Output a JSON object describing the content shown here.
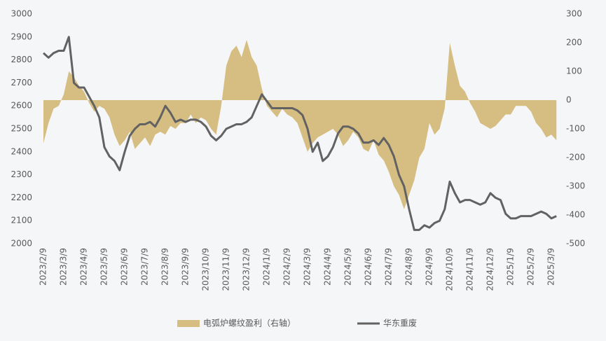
{
  "chart_data": {
    "type": "line",
    "categories": [
      "2023/2/9",
      null,
      null,
      null,
      "2023/3/9",
      null,
      null,
      null,
      "2023/4/9",
      null,
      null,
      null,
      "2023/5/9",
      null,
      null,
      null,
      "2023/6/9",
      null,
      null,
      null,
      "2023/7/9",
      null,
      null,
      null,
      "2023/8/9",
      null,
      null,
      null,
      "2023/9/9",
      null,
      null,
      null,
      "2023/10/9",
      null,
      null,
      null,
      "2023/11/9",
      null,
      null,
      null,
      "2023/12/9",
      null,
      null,
      null,
      "2024/1/9",
      null,
      null,
      null,
      "2024/2/9",
      null,
      null,
      null,
      "2024/3/9",
      null,
      null,
      null,
      "2024/4/9",
      null,
      null,
      null,
      "2024/5/9",
      null,
      null,
      null,
      "2024/6/9",
      null,
      null,
      null,
      "2024/7/9",
      null,
      null,
      null,
      "2024/8/9",
      null,
      null,
      null,
      "2024/9/9",
      null,
      null,
      null,
      "2024/10/9",
      null,
      null,
      null,
      "2024/11/9",
      null,
      null,
      null,
      "2024/12/9",
      null,
      null,
      null,
      "2025/1/9",
      null,
      null,
      null,
      "2025/2/9",
      null,
      null,
      null,
      "2025/3/9",
      null
    ],
    "series": [
      {
        "name": "电弧炉螺纹盈利（右轴）",
        "type": "area",
        "axis": "y2",
        "color": "#d6bd82",
        "values": [
          -150,
          -80,
          -30,
          -20,
          20,
          100,
          80,
          50,
          30,
          -10,
          -40,
          -20,
          -30,
          -60,
          -120,
          -160,
          -140,
          -110,
          -170,
          -150,
          -130,
          -160,
          -120,
          -110,
          -120,
          -90,
          -100,
          -80,
          -80,
          -50,
          -80,
          -60,
          -70,
          -100,
          -120,
          -20,
          120,
          170,
          190,
          150,
          210,
          150,
          120,
          40,
          -20,
          -40,
          -60,
          -30,
          -50,
          -60,
          -80,
          -130,
          -180,
          -150,
          -130,
          -120,
          -110,
          -100,
          -120,
          -160,
          -140,
          -110,
          -130,
          -170,
          -180,
          -140,
          -190,
          -210,
          -250,
          -300,
          -330,
          -380,
          -330,
          -280,
          -200,
          -170,
          -80,
          -120,
          -100,
          -30,
          200,
          120,
          50,
          30,
          -10,
          -40,
          -80,
          -90,
          -100,
          -90,
          -70,
          -50,
          -50,
          -20,
          -20,
          -20,
          -40,
          -80,
          -100,
          -130,
          -120,
          -140
        ]
      },
      {
        "name": "华东重废",
        "type": "line",
        "color": "#626262",
        "values": [
          2830,
          2810,
          2830,
          2840,
          2840,
          2900,
          2700,
          2680,
          2680,
          2640,
          2600,
          2550,
          2420,
          2380,
          2360,
          2320,
          2400,
          2470,
          2500,
          2520,
          2520,
          2530,
          2510,
          2550,
          2600,
          2570,
          2530,
          2540,
          2530,
          2540,
          2540,
          2530,
          2510,
          2470,
          2450,
          2470,
          2500,
          2510,
          2520,
          2520,
          2530,
          2550,
          2600,
          2650,
          2620,
          2590,
          2590,
          2590,
          2590,
          2590,
          2580,
          2560,
          2500,
          2400,
          2440,
          2360,
          2380,
          2420,
          2480,
          2510,
          2510,
          2500,
          2480,
          2440,
          2440,
          2450,
          2430,
          2460,
          2430,
          2380,
          2300,
          2250,
          2150,
          2060,
          2060,
          2080,
          2070,
          2090,
          2100,
          2150,
          2270,
          2220,
          2180,
          2190,
          2190,
          2180,
          2170,
          2180,
          2220,
          2200,
          2190,
          2130,
          2110,
          2110,
          2120,
          2120,
          2120,
          2130,
          2140,
          2130,
          2110,
          2120
        ]
      }
    ],
    "ylim": [
      2000,
      3000
    ],
    "yticks": [
      2000,
      2100,
      2200,
      2300,
      2400,
      2500,
      2600,
      2700,
      2800,
      2900,
      3000
    ],
    "y2lim": [
      -500,
      300
    ],
    "y2ticks": [
      -500,
      -400,
      -300,
      -200,
      -100,
      0,
      100,
      200,
      300
    ]
  }
}
